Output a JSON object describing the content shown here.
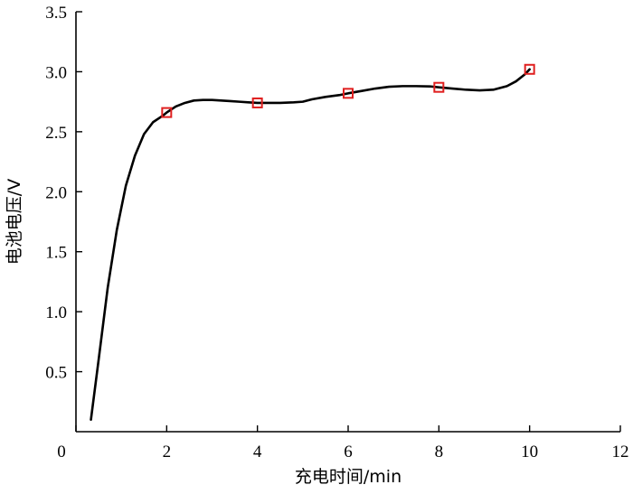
{
  "chart_data": {
    "type": "line",
    "xlabel": "充电时间/min",
    "ylabel": "电池电压/V",
    "xlim": [
      0,
      12
    ],
    "ylim": [
      0,
      3.5
    ],
    "x_ticks": [
      "0",
      "2",
      "4",
      "6",
      "8",
      "10",
      "12"
    ],
    "y_ticks": [
      "0.5",
      "1.0",
      "1.5",
      "2.0",
      "2.5",
      "3.0",
      "3.5"
    ],
    "grid": false,
    "series": [
      {
        "color": "#000000",
        "x": [
          0.33,
          0.5,
          0.7,
          0.9,
          1.1,
          1.3,
          1.5,
          1.7,
          1.9,
          2.0,
          2.2,
          2.4,
          2.6,
          2.8,
          3.0,
          3.2,
          3.4,
          3.6,
          3.8,
          4.0,
          4.2,
          4.5,
          4.8,
          5.0,
          5.2,
          5.5,
          5.8,
          6.0,
          6.3,
          6.6,
          6.9,
          7.2,
          7.5,
          7.8,
          8.0,
          8.3,
          8.6,
          8.9,
          9.2,
          9.5,
          9.7,
          9.9,
          10.0
        ],
        "y": [
          0.1,
          0.6,
          1.2,
          1.68,
          2.05,
          2.3,
          2.48,
          2.58,
          2.63,
          2.66,
          2.71,
          2.74,
          2.76,
          2.765,
          2.765,
          2.76,
          2.755,
          2.75,
          2.745,
          2.74,
          2.74,
          2.74,
          2.745,
          2.75,
          2.77,
          2.79,
          2.805,
          2.82,
          2.84,
          2.86,
          2.875,
          2.88,
          2.88,
          2.878,
          2.87,
          2.86,
          2.85,
          2.845,
          2.85,
          2.88,
          2.92,
          2.98,
          3.02
        ]
      },
      {
        "color": "#e02020",
        "marker": "square",
        "x": [
          2,
          4,
          6,
          8,
          10
        ],
        "y": [
          2.66,
          2.74,
          2.82,
          2.87,
          3.02
        ]
      }
    ]
  }
}
